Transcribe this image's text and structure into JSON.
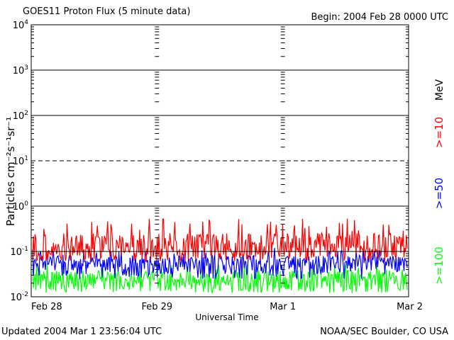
{
  "header": {
    "title": "GOES11 Proton Flux (5 minute data)",
    "begin": "Begin: 2004 Feb 28 0000 UTC"
  },
  "footer": {
    "updated": "Updated 2004 Mar  1 23:56:04 UTC",
    "credit": "NOAA/SEC Boulder, CO USA"
  },
  "chart_data": {
    "type": "line",
    "title": "GOES11 Proton Flux (5 minute data)",
    "xlabel": "Universal Time",
    "ylabel": "Particles cm⁻²s⁻¹sr⁻¹",
    "yscale": "log",
    "ylim": [
      0.01,
      10000
    ],
    "xlim": [
      "2004-02-28 00:00",
      "2004-03-02 00:00"
    ],
    "x_ticks": [
      "Feb 28",
      "Feb 29",
      "Mar 1",
      "Mar 2"
    ],
    "y_ticks": [
      {
        "base": "10",
        "exp": "-2"
      },
      {
        "base": "10",
        "exp": "-1"
      },
      {
        "base": "10",
        "exp": "0"
      },
      {
        "base": "10",
        "exp": "1"
      },
      {
        "base": "10",
        "exp": "2"
      },
      {
        "base": "10",
        "exp": "3"
      },
      {
        "base": "10",
        "exp": "4"
      }
    ],
    "threshold": {
      "value": 10,
      "style": "dashed"
    },
    "unit_label": "MeV",
    "series": [
      {
        "name": ">=10",
        "color": "#ff0000",
        "median": 0.12,
        "range": [
          0.06,
          0.55
        ]
      },
      {
        "name": ">=50",
        "color": "#0000ff",
        "median": 0.055,
        "range": [
          0.025,
          0.12
        ]
      },
      {
        "name": ">=100",
        "color": "#00ff00",
        "median": 0.025,
        "range": [
          0.012,
          0.06
        ]
      }
    ]
  }
}
